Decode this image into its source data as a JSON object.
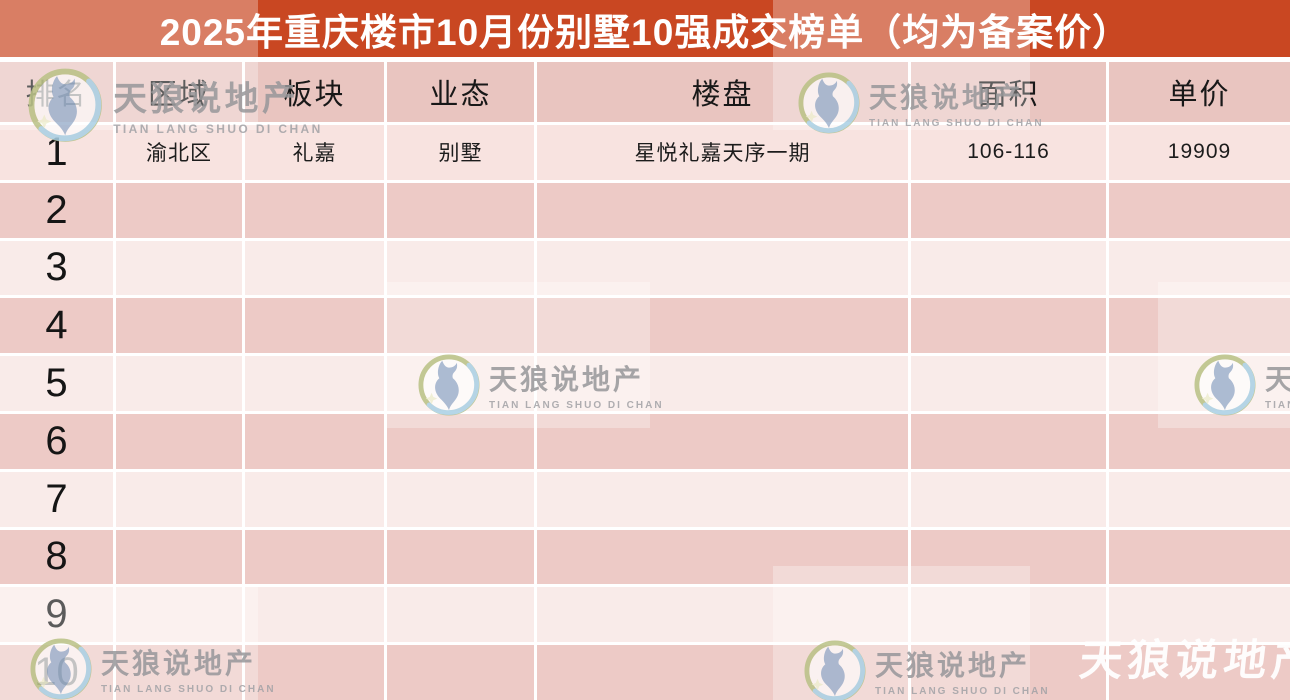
{
  "chart_data": {
    "type": "table",
    "title": "2025年重庆楼市10月份别墅10强成交榜单（均为备案价）",
    "columns": [
      "排名",
      "区域",
      "板块",
      "业态",
      "楼盘",
      "面积",
      "单价"
    ],
    "rows": [
      [
        "1",
        "渝北区",
        "礼嘉",
        "别墅",
        "星悦礼嘉天序一期",
        "106-116",
        "19909"
      ],
      [
        "2",
        "",
        "",
        "",
        "",
        "",
        ""
      ],
      [
        "3",
        "",
        "",
        "",
        "",
        "",
        ""
      ],
      [
        "4",
        "",
        "",
        "",
        "",
        "",
        ""
      ],
      [
        "5",
        "",
        "",
        "",
        "",
        "",
        ""
      ],
      [
        "6",
        "",
        "",
        "",
        "",
        "",
        ""
      ],
      [
        "7",
        "",
        "",
        "",
        "",
        "",
        ""
      ],
      [
        "8",
        "",
        "",
        "",
        "",
        "",
        ""
      ],
      [
        "9",
        "",
        "",
        "",
        "",
        "",
        ""
      ],
      [
        "10",
        "",
        "",
        "",
        "",
        "",
        ""
      ]
    ]
  },
  "watermark": {
    "cn": "天狼说地产",
    "en": "TIAN LANG SHUO DI CHAN"
  },
  "colors": {
    "title_bg": "#c94722",
    "title_bg_light": "#d97e64",
    "title_text": "#ffffff",
    "header_bg": "#e9c5c0",
    "row_dark": "#edcac6",
    "row_light": "#f9ebe9",
    "row_first": "#f8e3e0",
    "gridline": "#ffffff",
    "logo_ring_olive": "#b9c185",
    "logo_ring_blue": "#a9d0e4",
    "logo_wolf": "#94aac8",
    "watermark_gray": "#97979a"
  }
}
